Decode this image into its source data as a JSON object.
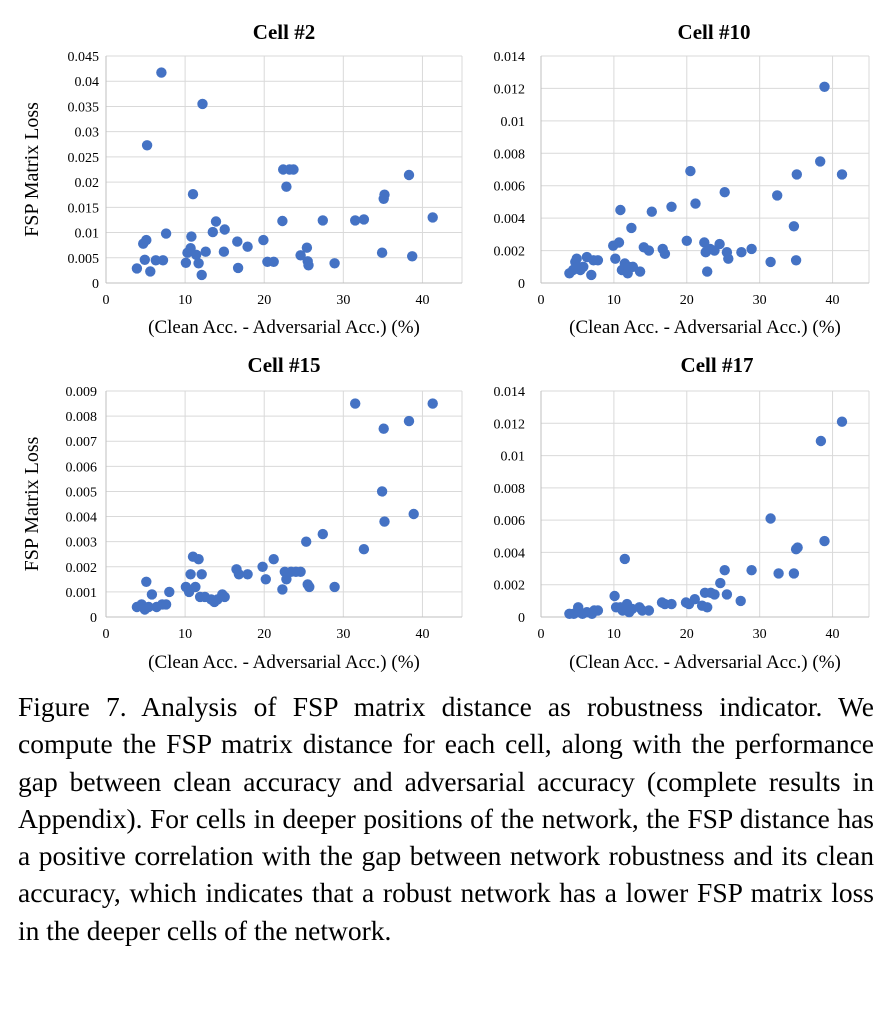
{
  "chart_data": [
    {
      "type": "scatter",
      "title": "Cell #2",
      "xlabel": "(Clean Acc. - Adversarial Acc.) (%)",
      "ylabel": "FSP Matrix Loss",
      "xlim": [
        0,
        45
      ],
      "ylim": [
        0,
        0.045
      ],
      "xticks": [
        "0",
        "10",
        "20",
        "30",
        "40"
      ],
      "yticks": [
        "0",
        "0.005",
        "0.01",
        "0.015",
        "0.02",
        "0.025",
        "0.03",
        "0.035",
        "0.04",
        "0.045"
      ],
      "grid": true,
      "color": "#4472c4",
      "points": [
        [
          3.9,
          0.0029
        ],
        [
          4.7,
          0.0078
        ],
        [
          4.9,
          0.0046
        ],
        [
          5.1,
          0.0085
        ],
        [
          5.2,
          0.0273
        ],
        [
          5.6,
          0.0023
        ],
        [
          6.3,
          0.0045
        ],
        [
          7.0,
          0.0417
        ],
        [
          7.2,
          0.0045
        ],
        [
          7.6,
          0.0098
        ],
        [
          10.1,
          0.004
        ],
        [
          10.3,
          0.006
        ],
        [
          10.7,
          0.0069
        ],
        [
          10.8,
          0.0092
        ],
        [
          11.0,
          0.0176
        ],
        [
          11.4,
          0.0056
        ],
        [
          11.7,
          0.0039
        ],
        [
          12.1,
          0.0016
        ],
        [
          12.2,
          0.0355
        ],
        [
          12.6,
          0.0062
        ],
        [
          13.5,
          0.0101
        ],
        [
          13.9,
          0.0122
        ],
        [
          14.9,
          0.0062
        ],
        [
          15.0,
          0.0106
        ],
        [
          16.6,
          0.0082
        ],
        [
          16.7,
          0.003
        ],
        [
          17.9,
          0.0072
        ],
        [
          19.9,
          0.0085
        ],
        [
          20.4,
          0.0042
        ],
        [
          21.2,
          0.0042
        ],
        [
          22.3,
          0.0123
        ],
        [
          22.4,
          0.0225
        ],
        [
          22.8,
          0.0191
        ],
        [
          23.2,
          0.0225
        ],
        [
          23.7,
          0.0225
        ],
        [
          24.6,
          0.0055
        ],
        [
          25.4,
          0.007
        ],
        [
          25.5,
          0.0043
        ],
        [
          25.6,
          0.0035
        ],
        [
          27.4,
          0.0124
        ],
        [
          28.9,
          0.0039
        ],
        [
          31.5,
          0.0124
        ],
        [
          32.6,
          0.0126
        ],
        [
          34.9,
          0.006
        ],
        [
          35.1,
          0.0167
        ],
        [
          35.2,
          0.0175
        ],
        [
          38.3,
          0.0214
        ],
        [
          38.7,
          0.0053
        ],
        [
          41.3,
          0.013
        ]
      ]
    },
    {
      "type": "scatter",
      "title": "Cell #10",
      "xlabel": "(Clean Acc. - Adversarial Acc.) (%)",
      "ylabel": "",
      "xlim": [
        0,
        45
      ],
      "ylim": [
        0,
        0.014
      ],
      "xticks": [
        "0",
        "10",
        "20",
        "30",
        "40"
      ],
      "yticks": [
        "0",
        "0.002",
        "0.004",
        "0.006",
        "0.008",
        "0.01",
        "0.012",
        "0.014"
      ],
      "grid": true,
      "color": "#4472c4",
      "points": [
        [
          3.9,
          0.0006
        ],
        [
          4.4,
          0.0008
        ],
        [
          4.7,
          0.0013
        ],
        [
          4.9,
          0.0015
        ],
        [
          5.1,
          0.001
        ],
        [
          5.4,
          0.0008
        ],
        [
          5.8,
          0.001
        ],
        [
          6.3,
          0.0016
        ],
        [
          6.9,
          0.0005
        ],
        [
          7.2,
          0.0014
        ],
        [
          7.8,
          0.0014
        ],
        [
          9.9,
          0.0023
        ],
        [
          10.2,
          0.0015
        ],
        [
          10.7,
          0.0025
        ],
        [
          10.9,
          0.0045
        ],
        [
          11.1,
          0.0008
        ],
        [
          11.5,
          0.0012
        ],
        [
          11.9,
          0.0006
        ],
        [
          12.0,
          0.001
        ],
        [
          12.4,
          0.0034
        ],
        [
          12.6,
          0.001
        ],
        [
          13.6,
          0.0007
        ],
        [
          14.1,
          0.0022
        ],
        [
          14.8,
          0.002
        ],
        [
          15.2,
          0.0044
        ],
        [
          16.7,
          0.0021
        ],
        [
          17.0,
          0.0018
        ],
        [
          17.9,
          0.0047
        ],
        [
          20.0,
          0.0026
        ],
        [
          20.5,
          0.0069
        ],
        [
          21.2,
          0.0049
        ],
        [
          22.4,
          0.0025
        ],
        [
          22.6,
          0.0019
        ],
        [
          22.8,
          0.0007
        ],
        [
          23.2,
          0.0021
        ],
        [
          23.8,
          0.002
        ],
        [
          24.5,
          0.0024
        ],
        [
          25.2,
          0.0056
        ],
        [
          25.5,
          0.0019
        ],
        [
          25.7,
          0.0015
        ],
        [
          27.5,
          0.0019
        ],
        [
          28.9,
          0.0021
        ],
        [
          31.5,
          0.0013
        ],
        [
          32.4,
          0.0054
        ],
        [
          34.7,
          0.0035
        ],
        [
          35.0,
          0.0014
        ],
        [
          35.1,
          0.0067
        ],
        [
          38.3,
          0.0075
        ],
        [
          38.9,
          0.0121
        ],
        [
          41.3,
          0.0067
        ]
      ]
    },
    {
      "type": "scatter",
      "title": "Cell #15",
      "xlabel": "(Clean Acc. - Adversarial Acc.) (%)",
      "ylabel": "FSP Matrix Loss",
      "xlim": [
        0,
        45
      ],
      "ylim": [
        0,
        0.009
      ],
      "xticks": [
        "0",
        "10",
        "20",
        "30",
        "40"
      ],
      "yticks": [
        "0",
        "0.001",
        "0.002",
        "0.003",
        "0.004",
        "0.005",
        "0.006",
        "0.007",
        "0.008",
        "0.009"
      ],
      "grid": true,
      "color": "#4472c4",
      "points": [
        [
          3.9,
          0.0004
        ],
        [
          4.5,
          0.0005
        ],
        [
          4.9,
          0.0003
        ],
        [
          5.1,
          0.0014
        ],
        [
          5.4,
          0.0004
        ],
        [
          5.8,
          0.0009
        ],
        [
          6.4,
          0.0004
        ],
        [
          7.1,
          0.0005
        ],
        [
          7.6,
          0.0005
        ],
        [
          8.0,
          0.001
        ],
        [
          10.1,
          0.0012
        ],
        [
          10.5,
          0.001
        ],
        [
          10.7,
          0.0017
        ],
        [
          11.0,
          0.0024
        ],
        [
          11.3,
          0.0012
        ],
        [
          11.7,
          0.0023
        ],
        [
          11.9,
          0.0008
        ],
        [
          12.1,
          0.0017
        ],
        [
          12.5,
          0.0008
        ],
        [
          13.3,
          0.0007
        ],
        [
          13.7,
          0.0006
        ],
        [
          14.1,
          0.0007
        ],
        [
          14.7,
          0.0009
        ],
        [
          15.0,
          0.0008
        ],
        [
          16.5,
          0.0019
        ],
        [
          16.8,
          0.0017
        ],
        [
          17.9,
          0.0017
        ],
        [
          19.8,
          0.002
        ],
        [
          20.2,
          0.0015
        ],
        [
          21.2,
          0.0023
        ],
        [
          22.3,
          0.0011
        ],
        [
          22.6,
          0.0018
        ],
        [
          22.8,
          0.0015
        ],
        [
          23.4,
          0.0018
        ],
        [
          24.0,
          0.0018
        ],
        [
          24.6,
          0.0018
        ],
        [
          25.3,
          0.003
        ],
        [
          25.5,
          0.0013
        ],
        [
          25.7,
          0.0012
        ],
        [
          27.4,
          0.0033
        ],
        [
          28.9,
          0.0012
        ],
        [
          31.5,
          0.0085
        ],
        [
          32.6,
          0.0027
        ],
        [
          34.9,
          0.005
        ],
        [
          35.1,
          0.0075
        ],
        [
          35.2,
          0.0038
        ],
        [
          38.3,
          0.0078
        ],
        [
          38.9,
          0.0041
        ],
        [
          41.3,
          0.0085
        ]
      ]
    },
    {
      "type": "scatter",
      "title": "Cell #17",
      "xlabel": "(Clean Acc. - Adversarial Acc.) (%)",
      "ylabel": "",
      "xlim": [
        0,
        45
      ],
      "ylim": [
        0,
        0.014
      ],
      "xticks": [
        "0",
        "10",
        "20",
        "30",
        "40"
      ],
      "yticks": [
        "0",
        "0.002",
        "0.004",
        "0.006",
        "0.008",
        "0.01",
        "0.012",
        "0.014"
      ],
      "grid": true,
      "color": "#4472c4",
      "points": [
        [
          3.9,
          0.0002
        ],
        [
          4.5,
          0.0002
        ],
        [
          4.9,
          0.0003
        ],
        [
          5.1,
          0.0006
        ],
        [
          5.3,
          0.0003
        ],
        [
          5.7,
          0.0002
        ],
        [
          6.3,
          0.0003
        ],
        [
          7.0,
          0.0002
        ],
        [
          7.3,
          0.0004
        ],
        [
          7.8,
          0.0004
        ],
        [
          10.1,
          0.0013
        ],
        [
          10.3,
          0.0006
        ],
        [
          10.9,
          0.0006
        ],
        [
          11.2,
          0.0004
        ],
        [
          11.5,
          0.0036
        ],
        [
          11.8,
          0.0008
        ],
        [
          12.1,
          0.0003
        ],
        [
          12.5,
          0.0005
        ],
        [
          13.5,
          0.0006
        ],
        [
          13.9,
          0.0004
        ],
        [
          14.8,
          0.0004
        ],
        [
          16.6,
          0.0009
        ],
        [
          17.0,
          0.0008
        ],
        [
          17.9,
          0.0008
        ],
        [
          19.9,
          0.0009
        ],
        [
          20.3,
          0.0008
        ],
        [
          21.1,
          0.0011
        ],
        [
          22.1,
          0.0007
        ],
        [
          22.5,
          0.0015
        ],
        [
          22.8,
          0.0006
        ],
        [
          23.3,
          0.0015
        ],
        [
          23.8,
          0.0014
        ],
        [
          24.6,
          0.0021
        ],
        [
          25.2,
          0.0029
        ],
        [
          25.5,
          0.0014
        ],
        [
          27.4,
          0.001
        ],
        [
          28.9,
          0.0029
        ],
        [
          31.5,
          0.0061
        ],
        [
          32.6,
          0.0027
        ],
        [
          34.7,
          0.0027
        ],
        [
          35.0,
          0.0042
        ],
        [
          35.2,
          0.0043
        ],
        [
          38.4,
          0.0109
        ],
        [
          38.9,
          0.0047
        ],
        [
          41.3,
          0.0121
        ]
      ]
    }
  ],
  "caption": "Figure 7. Analysis of FSP matrix distance as robustness indicator. We compute the FSP matrix distance for each cell, along with the performance gap between clean accuracy and adversarial accuracy (complete results in Appendix).  For cells in deeper positions of the network, the FSP distance has a positive correlation with the gap between network robustness and its clean accuracy, which indicates that a robust network has a lower FSP matrix loss in the deeper cells of the network."
}
